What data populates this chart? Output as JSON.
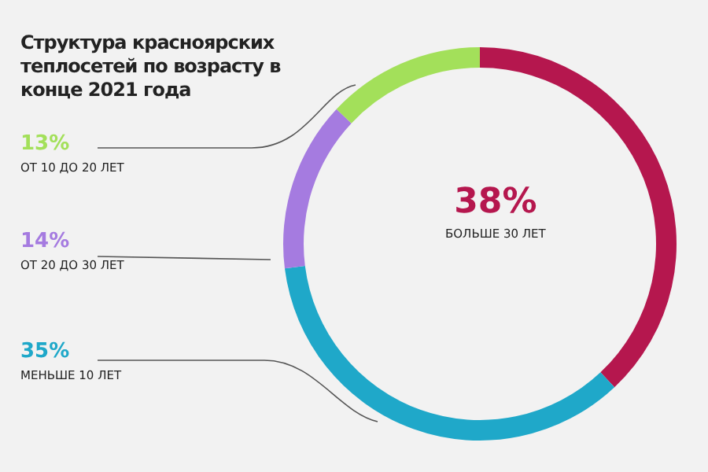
{
  "chart_data": {
    "type": "donut",
    "title": "Структура красноярских теплосетей по возрасту в конце 2021 года",
    "categories": [
      "БОЛЬШЕ 30 ЛЕТ",
      "МЕНЬШЕ 10 ЛЕТ",
      "ОТ 20 ДО 30 ЛЕТ",
      "ОТ 10 ДО 20 ЛЕТ"
    ],
    "values": [
      38,
      35,
      14,
      13
    ],
    "colors": [
      "#b5174e",
      "#1fa8c9",
      "#a57be0",
      "#a3e05a"
    ],
    "value_labels": [
      "38%",
      "35%",
      "14%",
      "13%"
    ]
  }
}
